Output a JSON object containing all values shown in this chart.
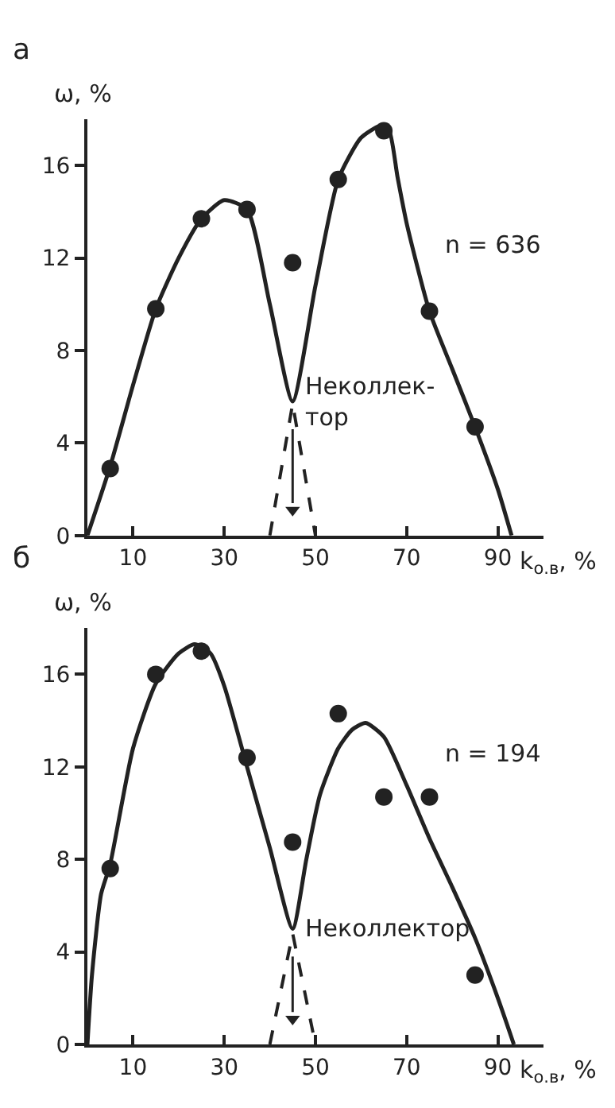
{
  "chart_data": [
    {
      "type": "line",
      "title": "а",
      "xlabel": "k$_{о.в}$, %",
      "ylabel": "ω, %",
      "xlim": [
        0,
        100
      ],
      "xticks": [
        10,
        30,
        50,
        70,
        90
      ],
      "ylim": [
        0,
        18
      ],
      "yticks": [
        0,
        4,
        8,
        12,
        16
      ],
      "series": [
        {
          "marker": "none",
          "color": "#222222",
          "x": [
            0,
            5,
            10,
            15,
            20,
            25,
            30,
            35,
            40,
            45,
            50,
            55,
            60,
            64,
            66,
            68,
            70,
            75,
            80,
            85,
            90,
            93
          ],
          "values": [
            0,
            3,
            6.5,
            9.8,
            12,
            13.7,
            14.5,
            14.1,
            10,
            5.8,
            10.8,
            15.4,
            17.2,
            17.7,
            17.6,
            15.5,
            13.5,
            9.7,
            7.2,
            4.7,
            2,
            0
          ]
        },
        {
          "type": "scatter",
          "marker": "circle",
          "color": "#222222",
          "x": [
            5,
            15,
            25,
            35,
            45,
            55,
            65,
            75,
            85
          ],
          "values": [
            2.9,
            9.8,
            13.7,
            14.1,
            11.8,
            15.4,
            17.5,
            9.7,
            4.7
          ]
        },
        {
          "line_style": "dashed",
          "marker": "none",
          "color": "#222222",
          "x": [
            40,
            45,
            50
          ],
          "values": [
            0,
            5.7,
            0
          ]
        },
        {
          "marker": "none",
          "color": "#222222",
          "x": [
            45,
            45
          ],
          "values": [
            4.6,
            1.4
          ]
        },
        {
          "type": "scatter",
          "marker": "triangle",
          "color": "#222222",
          "x": [
            45
          ],
          "values": [
            1.1
          ]
        }
      ],
      "annotations": [
        "n = 636",
        {
          "text": "Неколлек-\nтор",
          "x": 45,
          "y": 5.8
        }
      ]
    },
    {
      "type": "line",
      "title": "б",
      "xlabel": "k$_{о.в}$, %",
      "ylabel": "ω, %",
      "xlim": [
        0,
        100
      ],
      "xticks": [
        10,
        30,
        50,
        70,
        90
      ],
      "ylim": [
        0,
        18
      ],
      "yticks": [
        0,
        4,
        8,
        12,
        16
      ],
      "series": [
        {
          "marker": "none",
          "color": "#222222",
          "x": [
            0,
            1,
            3,
            5,
            10,
            15,
            20,
            23.5,
            27,
            30,
            35,
            40,
            45,
            48,
            51,
            55,
            58,
            61,
            65,
            70,
            75,
            80,
            85,
            90,
            93.5
          ],
          "values": [
            0,
            3,
            6.5,
            7.8,
            12.8,
            15.6,
            16.9,
            17.3,
            16.9,
            15.5,
            12,
            8.5,
            5,
            8,
            10.8,
            12.8,
            13.6,
            13.9,
            13.3,
            11.2,
            8.9,
            6.8,
            4.6,
            2,
            0
          ]
        },
        {
          "type": "scatter",
          "marker": "circle",
          "color": "#222222",
          "x": [
            5,
            15,
            25,
            35,
            45,
            55,
            65,
            75,
            85
          ],
          "values": [
            7.6,
            16,
            17,
            12.4,
            8.75,
            14.3,
            10.7,
            10.7,
            3
          ]
        },
        {
          "line_style": "dashed",
          "marker": "none",
          "color": "#222222",
          "x": [
            40,
            45,
            50
          ],
          "values": [
            0,
            4.8,
            0
          ]
        },
        {
          "marker": "none",
          "color": "#222222",
          "x": [
            45,
            45
          ],
          "values": [
            3.8,
            1.4
          ]
        },
        {
          "type": "scatter",
          "marker": "triangle",
          "color": "#222222",
          "x": [
            45
          ],
          "values": [
            1.1
          ]
        }
      ],
      "annotations": [
        "n = 194",
        {
          "text": "Неколлектор",
          "x": 45,
          "y": 5
        }
      ]
    }
  ]
}
